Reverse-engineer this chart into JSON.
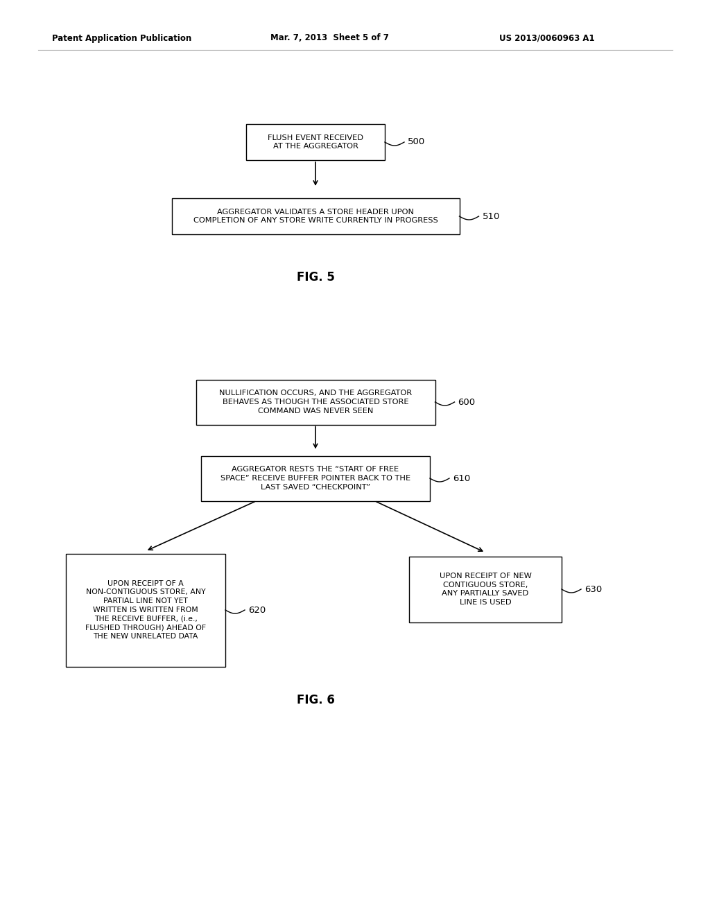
{
  "header_left": "Patent Application Publication",
  "header_center": "Mar. 7, 2013  Sheet 5 of 7",
  "header_right": "US 2013/0060963 A1",
  "fig5": {
    "title": "FIG. 5",
    "box500_text": "FLUSH EVENT RECEIVED\nAT THE AGGREGATOR",
    "box500_label": "500",
    "box510_text": "AGGREGATOR VALIDATES A STORE HEADER UPON\nCOMPLETION OF ANY STORE WRITE CURRENTLY IN PROGRESS",
    "box510_label": "510"
  },
  "fig6": {
    "title": "FIG. 6",
    "box600_text": "NULLIFICATION OCCURS, AND THE AGGREGATOR\nBEHAVES AS THOUGH THE ASSOCIATED STORE\nCOMMAND WAS NEVER SEEN",
    "box600_label": "600",
    "box610_text": "AGGREGATOR RESTS THE “START OF FREE\nSPACE” RECEIVE BUFFER POINTER BACK TO THE\nLAST SAVED “CHECKPOINT”",
    "box610_label": "610",
    "box620_text": "UPON RECEIPT OF A\nNON-CONTIGUOUS STORE, ANY\nPARTIAL LINE NOT YET\nWRITTEN IS WRITTEN FROM\nTHE RECEIVE BUFFER, (i.e.,\nFLUSHED THROUGH) AHEAD OF\nTHE NEW UNRELATED DATA",
    "box620_label": "620",
    "box630_text": "UPON RECEIPT OF NEW\nCONTIGUOUS STORE,\nANY PARTIALLY SAVED\nLINE IS USED",
    "box630_label": "630"
  },
  "bg_color": "#ffffff",
  "box_edge_color": "#000000",
  "text_color": "#000000",
  "arrow_color": "#000000",
  "header_line_color": "#aaaaaa"
}
